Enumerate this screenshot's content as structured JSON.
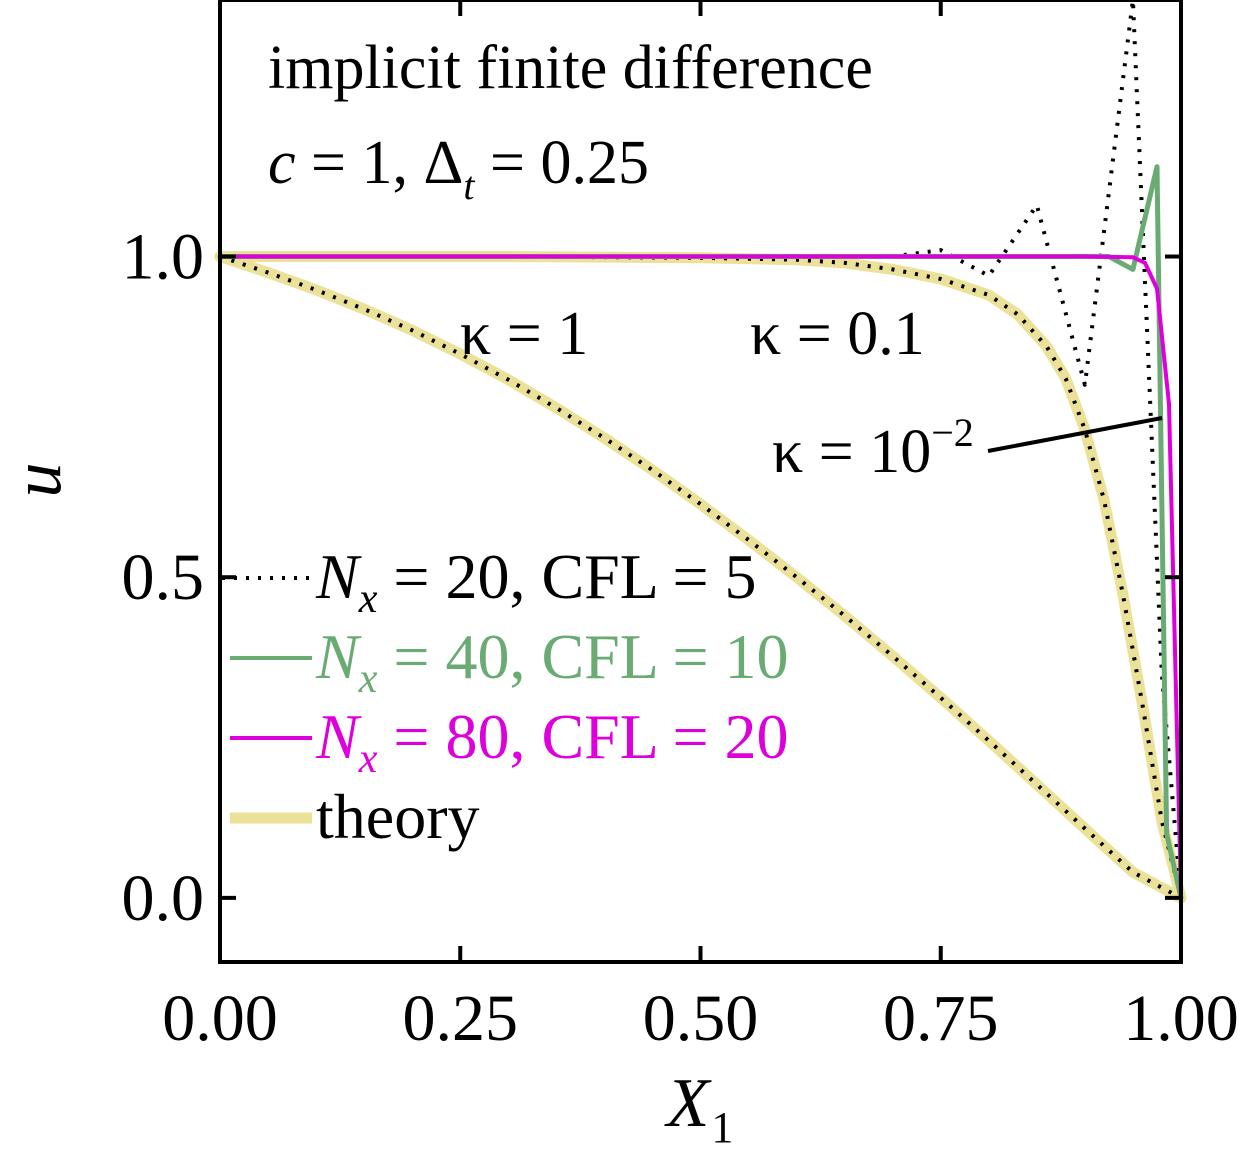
{
  "chart_data": {
    "type": "line",
    "title": "",
    "xlabel": "X",
    "xlabel_sub": "1",
    "ylabel": "u",
    "xlim": [
      0.0,
      1.0
    ],
    "ylim": [
      -0.1,
      1.4
    ],
    "xticks": [
      0.0,
      0.25,
      0.5,
      0.75,
      1.0
    ],
    "xtick_labels": [
      "0.00",
      "0.25",
      "0.50",
      "0.75",
      "1.00"
    ],
    "yticks": [
      0.0,
      0.5,
      1.0
    ],
    "ytick_labels": [
      "0.0",
      "0.5",
      "1.0"
    ],
    "grid": false,
    "legend_position": "lower-left",
    "annotations": {
      "line1": "implicit finite difference",
      "params_c": "c",
      "params_eq1": " = 1, Δ",
      "params_sub": "t",
      "params_eq2": " = 0.25",
      "kappa1": "κ = 1",
      "kappa01": "κ = 0.1",
      "kappa001_base": "κ = 10",
      "kappa001_exp": "−2"
    },
    "colors": {
      "nx20": "#000000",
      "nx40": "#6aaa73",
      "nx80": "#dd00dd",
      "theory": "#ece199"
    },
    "series": [
      {
        "name": "theory",
        "label": "theory",
        "style": "theory",
        "segments": [
          {
            "x": [
              0,
              0.05,
              0.1,
              0.15,
              0.2,
              0.25,
              0.3,
              0.35,
              0.4,
              0.45,
              0.5,
              0.55,
              0.6,
              0.65,
              0.7,
              0.75,
              0.8,
              0.85,
              0.9,
              0.95,
              1.0
            ],
            "y": [
              1.0,
              0.975,
              0.948,
              0.918,
              0.885,
              0.848,
              0.808,
              0.764,
              0.717,
              0.667,
              0.614,
              0.558,
              0.5,
              0.44,
              0.377,
              0.312,
              0.245,
              0.177,
              0.108,
              0.04,
              0.0
            ]
          },
          {
            "x": [
              0,
              0.3,
              0.5,
              0.6,
              0.65,
              0.7,
              0.75,
              0.8,
              0.83,
              0.86,
              0.88,
              0.9,
              0.92,
              0.94,
              0.96,
              0.98,
              1.0
            ],
            "y": [
              1.0,
              1.0,
              0.998,
              0.995,
              0.99,
              0.98,
              0.965,
              0.94,
              0.91,
              0.86,
              0.81,
              0.73,
              0.62,
              0.47,
              0.3,
              0.12,
              0.0
            ]
          }
        ]
      },
      {
        "name": "Nx=20, CFL=5",
        "label_prefix": "N",
        "label_sub": "x",
        "label_rest": " = 20, CFL = 5",
        "style": "nx20",
        "segments": [
          {
            "x": [
              0,
              0.05,
              0.1,
              0.15,
              0.2,
              0.25,
              0.3,
              0.35,
              0.4,
              0.45,
              0.5,
              0.55,
              0.6,
              0.65,
              0.7,
              0.75,
              0.8,
              0.85,
              0.9,
              0.95,
              1.0
            ],
            "y": [
              1.0,
              0.975,
              0.948,
              0.918,
              0.885,
              0.848,
              0.808,
              0.764,
              0.717,
              0.667,
              0.614,
              0.558,
              0.5,
              0.44,
              0.377,
              0.312,
              0.245,
              0.177,
              0.108,
              0.04,
              0.0
            ]
          },
          {
            "x": [
              0,
              0.3,
              0.5,
              0.6,
              0.65,
              0.7,
              0.75,
              0.8,
              0.83,
              0.86,
              0.88,
              0.9,
              0.92,
              0.94,
              0.96,
              0.98,
              1.0
            ],
            "y": [
              1.0,
              1.0,
              0.998,
              0.995,
              0.99,
              0.98,
              0.965,
              0.94,
              0.91,
              0.86,
              0.81,
              0.73,
              0.62,
              0.47,
              0.3,
              0.12,
              0.0
            ]
          },
          {
            "x": [
              0,
              0.1,
              0.2,
              0.3,
              0.4,
              0.5,
              0.55,
              0.6,
              0.65,
              0.7,
              0.75,
              0.8,
              0.85,
              0.9,
              0.95,
              0.98,
              1.0
            ],
            "y": [
              1.0,
              1.0,
              1.0,
              1.0,
              1.0,
              1.0,
              1.0,
              1.0,
              1.0,
              1.0,
              1.01,
              0.97,
              1.08,
              0.8,
              1.4,
              0.35,
              0.0
            ]
          }
        ]
      },
      {
        "name": "Nx=40, CFL=10",
        "label_prefix": "N",
        "label_sub": "x",
        "label_rest": " = 40, CFL = 10",
        "style": "nx40",
        "segments": [
          {
            "x": [
              0,
              0.2,
              0.4,
              0.6,
              0.8,
              0.9,
              0.925,
              0.95,
              0.975,
              0.985,
              1.0
            ],
            "y": [
              1.0,
              1.0,
              1.0,
              1.0,
              1.0,
              1.0,
              1.0,
              0.98,
              1.14,
              0.1,
              0.0
            ]
          }
        ]
      },
      {
        "name": "Nx=80, CFL=20",
        "label_prefix": "N",
        "label_sub": "x",
        "label_rest": " = 80, CFL = 20",
        "style": "nx80",
        "segments": [
          {
            "x": [
              0,
              0.2,
              0.4,
              0.6,
              0.8,
              0.9,
              0.95,
              0.9625,
              0.975,
              0.9875,
              1.0
            ],
            "y": [
              1.0,
              1.0,
              1.0,
              1.0,
              1.0,
              1.0,
              0.999,
              0.99,
              0.95,
              0.77,
              0.0
            ]
          }
        ]
      }
    ]
  }
}
